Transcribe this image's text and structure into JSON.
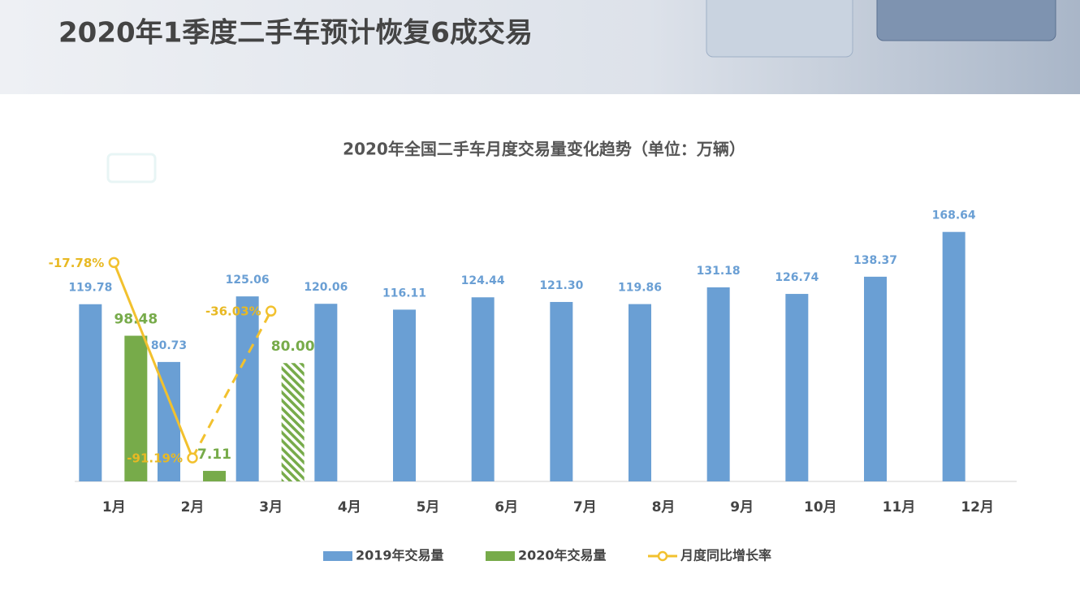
{
  "header": {
    "title": "2020年1季度二手车预计恢复6成交易"
  },
  "chart_data": {
    "type": "bar",
    "title": "2020年全国二手车月度交易量变化趋势（单位：万辆）",
    "categories": [
      "1月",
      "2月",
      "3月",
      "4月",
      "5月",
      "6月",
      "7月",
      "8月",
      "9月",
      "10月",
      "11月",
      "12月"
    ],
    "ylim": [
      0,
      180
    ],
    "y2lim": [
      -100,
      0
    ],
    "series": [
      {
        "name": "2019年交易量",
        "type": "bar",
        "color": "#6a9fd4",
        "values": [
          119.78,
          80.73,
          125.06,
          120.06,
          116.11,
          124.44,
          121.3,
          119.86,
          131.18,
          126.74,
          138.37,
          168.64
        ],
        "value_labels": [
          "119.78",
          "80.73",
          "125.06",
          "120.06",
          "116.11",
          "124.44",
          "121.30",
          "119.86",
          "131.18",
          "126.74",
          "138.37",
          "168.64"
        ]
      },
      {
        "name": "2020年交易量",
        "type": "bar",
        "color": "#77ab4a",
        "estimated_index": 2,
        "values": [
          98.48,
          7.11,
          80.0,
          null,
          null,
          null,
          null,
          null,
          null,
          null,
          null,
          null
        ],
        "value_labels": [
          "98.48",
          "7.11",
          "80.00",
          null,
          null,
          null,
          null,
          null,
          null,
          null,
          null,
          null
        ]
      },
      {
        "name": "月度同比增长率",
        "type": "line",
        "axis": "y2",
        "color": "#f2c12e",
        "estimated_index": 2,
        "values": [
          -17.78,
          -91.19,
          -36.03,
          null,
          null,
          null,
          null,
          null,
          null,
          null,
          null,
          null
        ],
        "value_labels": [
          "-17.78%",
          "-91.19%",
          "-36.03%",
          null,
          null,
          null,
          null,
          null,
          null,
          null,
          null,
          null
        ]
      }
    ],
    "legend": "bottom"
  }
}
